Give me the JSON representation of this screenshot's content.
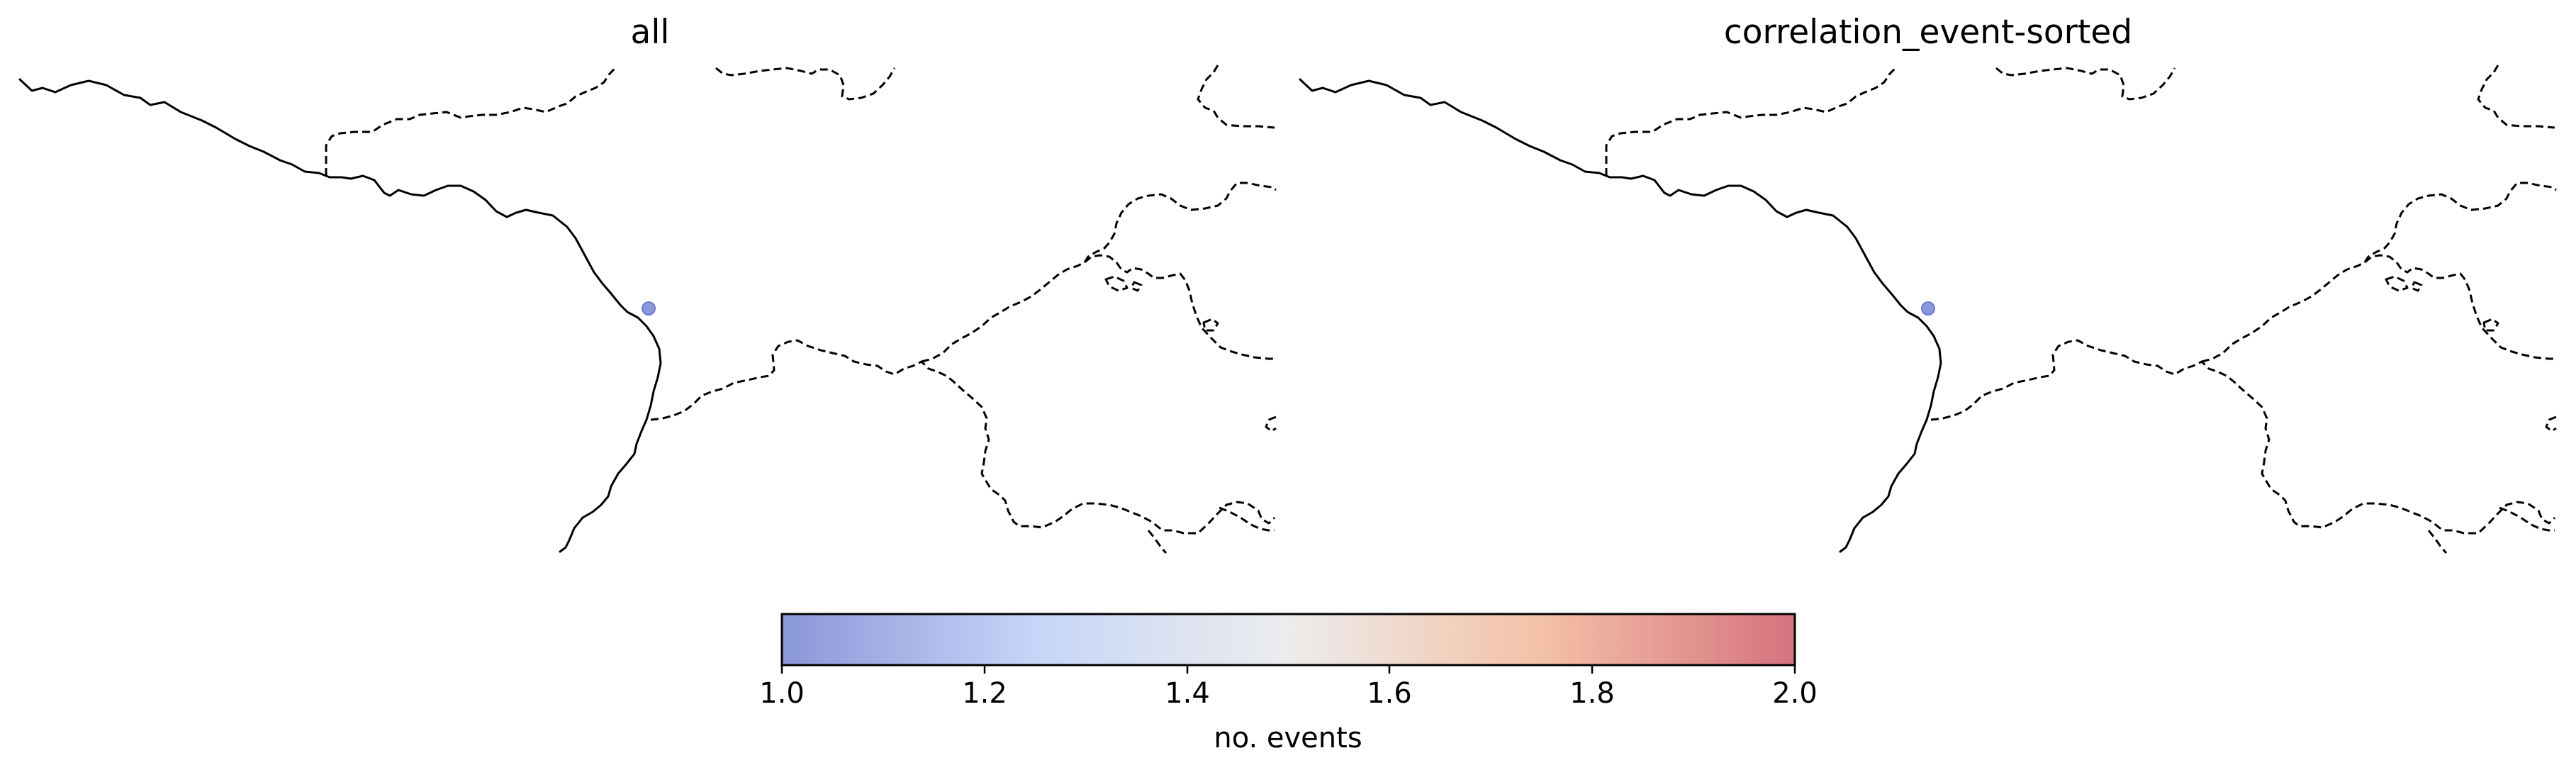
{
  "panels": [
    {
      "title": "all",
      "events": [
        {
          "value": 1.0
        }
      ]
    },
    {
      "title": "correlation_event-sorted",
      "events": [
        {
          "value": 1.0
        }
      ]
    }
  ],
  "colorbar": {
    "label": "no. events",
    "min": 1.0,
    "max": 2.0,
    "ticks": [
      "1.0",
      "1.2",
      "1.4",
      "1.6",
      "1.8",
      "2.0"
    ],
    "colormap": "coolwarm",
    "colors": [
      "#8a97d8",
      "#c6d6f8",
      "#ececec",
      "#f4c1a6",
      "#d5737f"
    ]
  },
  "chart_data": {
    "type": "scatter",
    "title": "",
    "legend": "colorbar-bottom",
    "series": [
      {
        "name": "all",
        "values": [
          1.0
        ]
      },
      {
        "name": "correlation_event-sorted",
        "values": [
          1.0
        ]
      }
    ]
  }
}
